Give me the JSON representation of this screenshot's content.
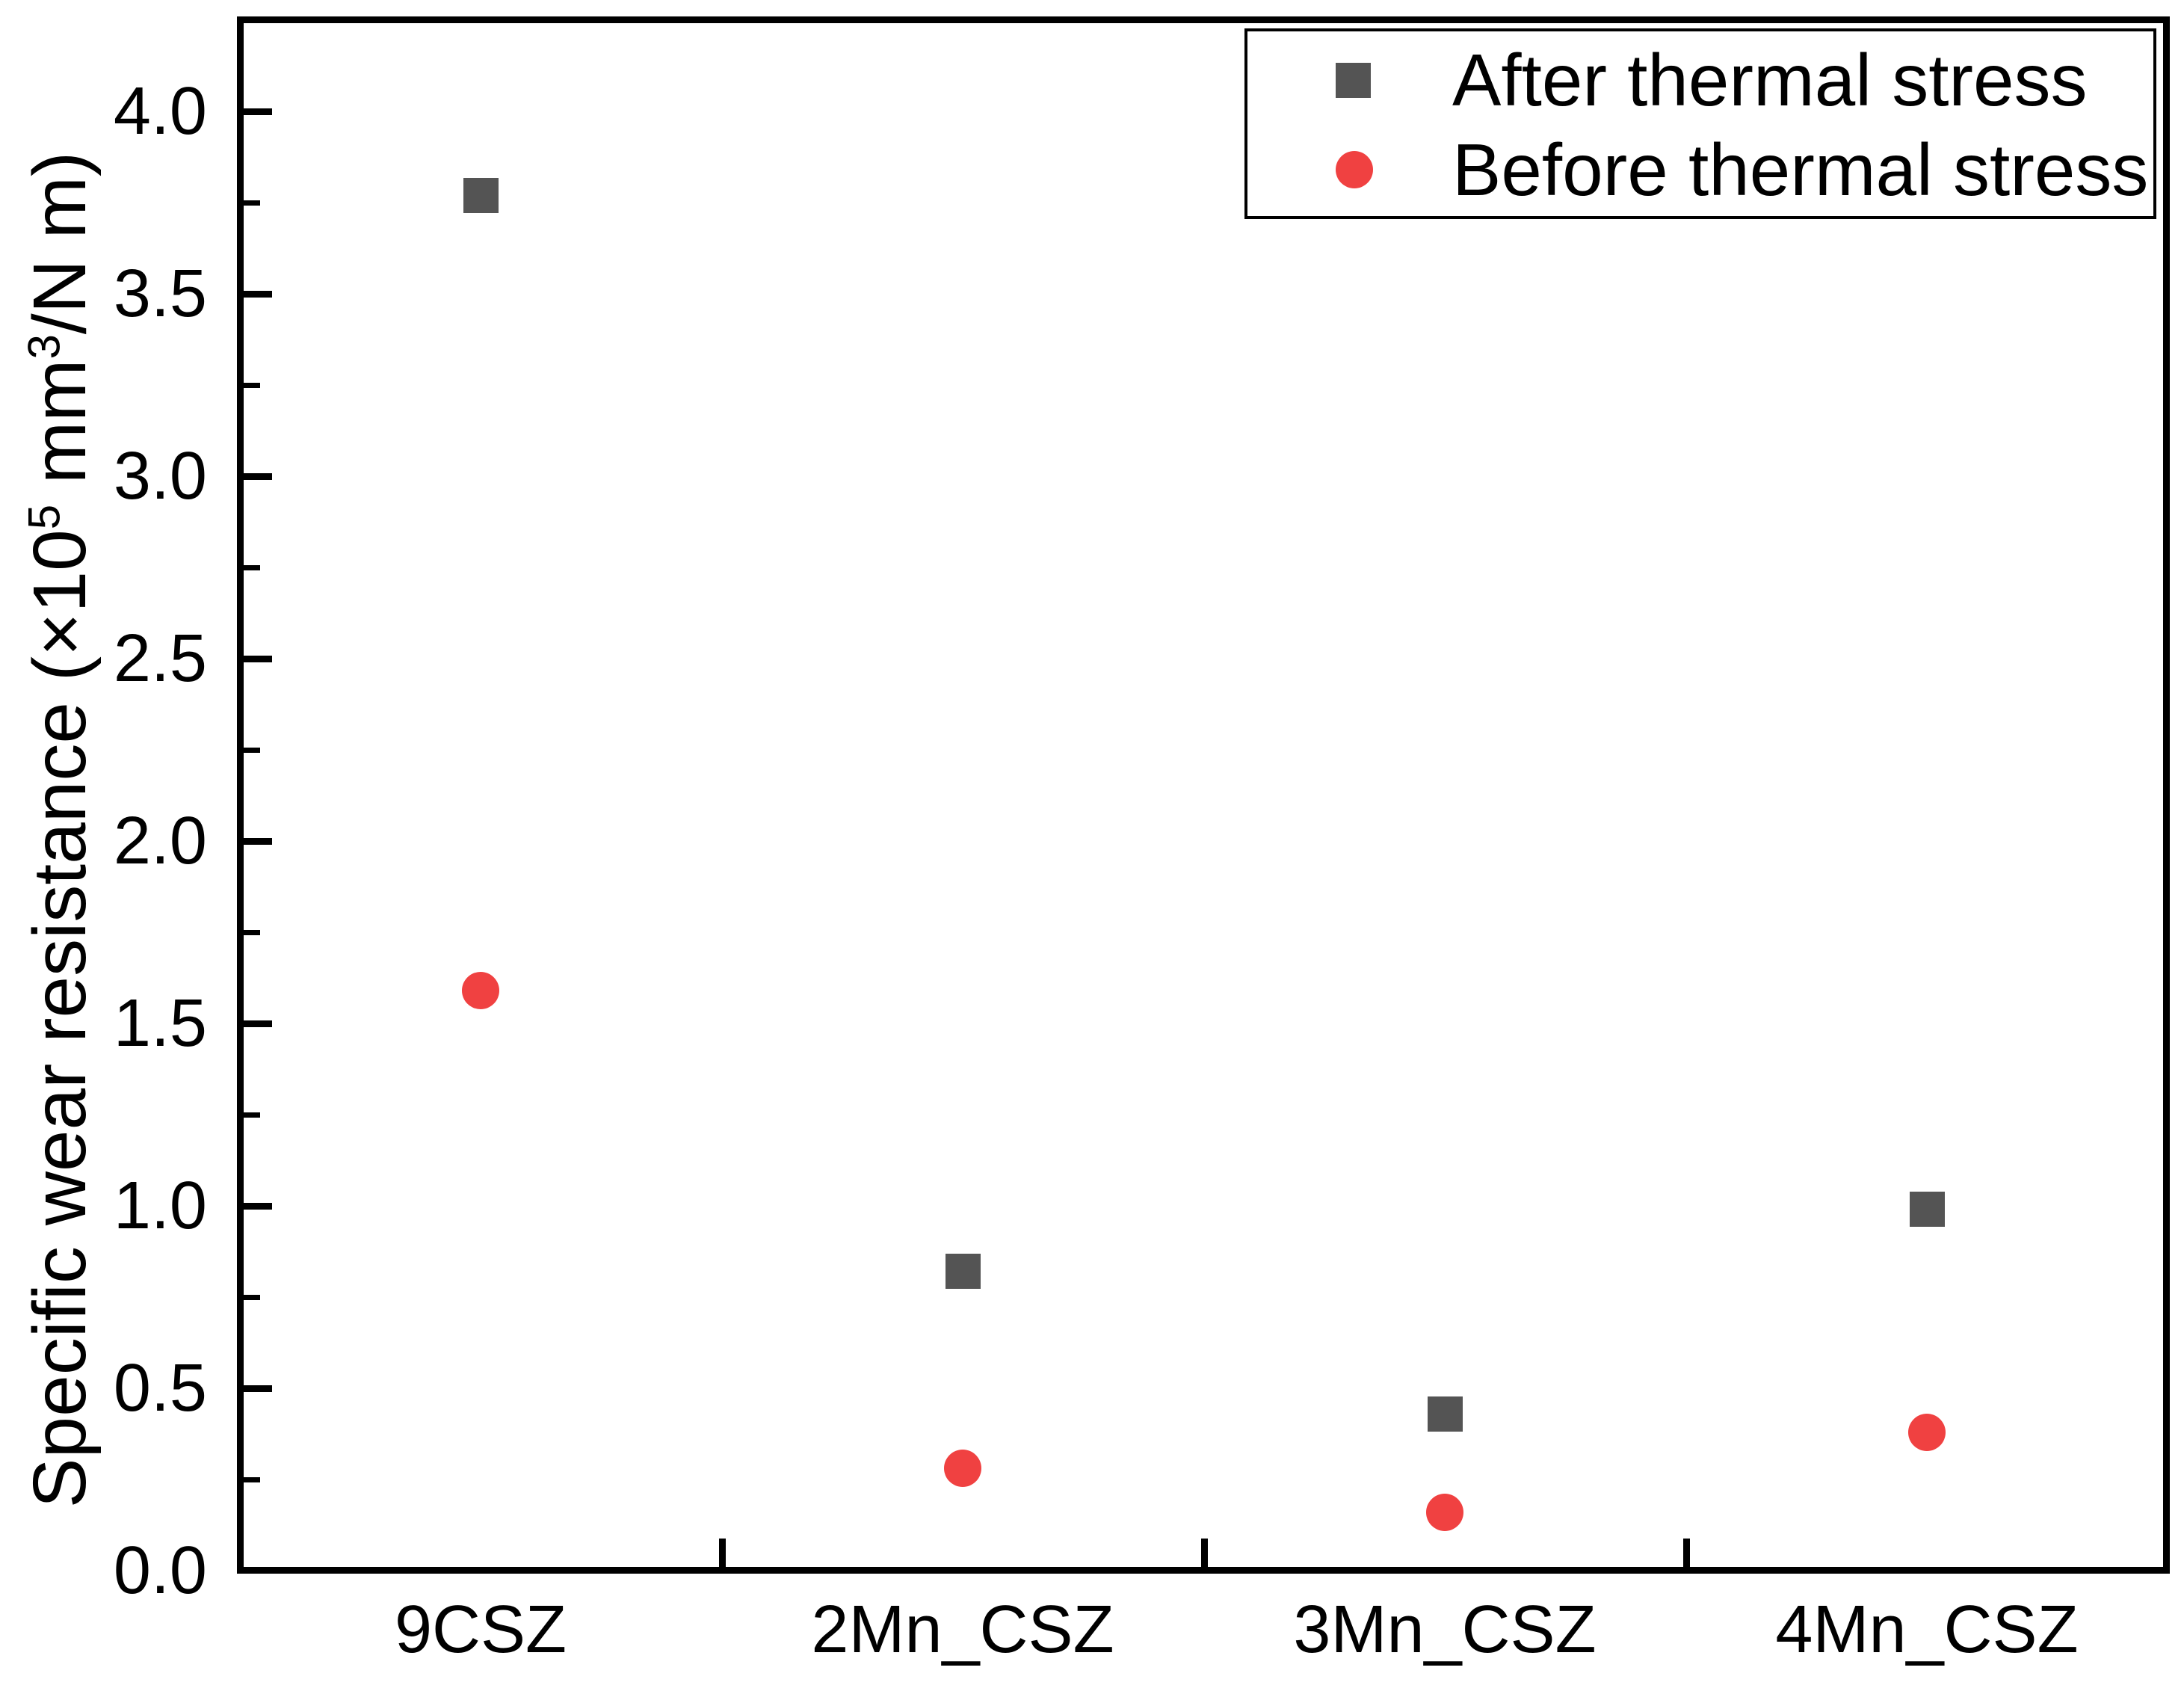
{
  "figure": {
    "background": "#ffffff",
    "axis_color": "#000000"
  },
  "chart_data": {
    "type": "scatter",
    "title": "",
    "categories": [
      "9CSZ",
      "2Mn_CSZ",
      "3Mn_CSZ",
      "4Mn_CSZ"
    ],
    "series": [
      {
        "name": "After thermal stress",
        "marker": "square",
        "color": "#545454",
        "values": [
          3.77,
          0.82,
          0.43,
          0.99
        ]
      },
      {
        "name": "Before thermal stress",
        "marker": "circle",
        "color": "#F04141",
        "values": [
          1.59,
          0.28,
          0.16,
          0.38
        ]
      }
    ],
    "xlabel": "",
    "ylabel": "Specific wear resistance (×10⁵ mm³/N m)",
    "ylabel_parts": {
      "pre": "Specific wear resistance (×10",
      "sup1": "5",
      "mid": " mm",
      "sup2": "3",
      "post": "/N m)"
    },
    "y_ticks": [
      "0.0",
      "0.5",
      "1.0",
      "1.5",
      "2.0",
      "2.5",
      "3.0",
      "3.5",
      "4.0"
    ],
    "y_minor_ticks": [
      0.25,
      0.75,
      1.25,
      1.75,
      2.25,
      2.75,
      3.25,
      3.75
    ],
    "ylim": [
      0,
      4.26
    ],
    "grid": false,
    "legend_position": "top-right"
  }
}
